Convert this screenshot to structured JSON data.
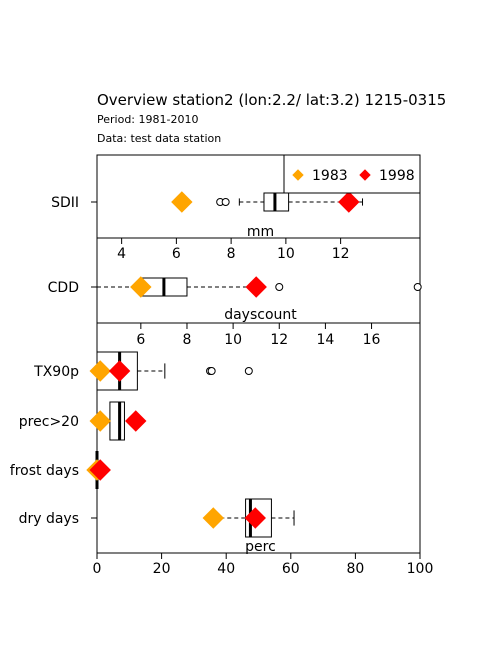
{
  "chart_data": {
    "type": "boxplot",
    "title": "Overview station2 (lon:2.2/ lat:3.2) 1215-0315",
    "subtitle_lines": [
      "Period: 1981-2010",
      "Data: test data station"
    ],
    "legend": {
      "placement": "top-right",
      "entries": [
        {
          "name": "1983",
          "color": "#FFA500"
        },
        {
          "name": "1998",
          "color": "#FF0000"
        }
      ]
    },
    "panels": [
      {
        "unit": "mm",
        "xlim": [
          3.1,
          14.9
        ],
        "ticks": [
          4,
          6,
          8,
          10,
          12
        ],
        "rows": [
          {
            "label": "SDII",
            "q1": 9.2,
            "median": 9.6,
            "q3": 10.1,
            "whisker_low": 8.3,
            "whisker_high": 12.8,
            "outliers": [
              7.6,
              7.8
            ],
            "year1983": 6.2,
            "year1998": 12.3
          }
        ]
      },
      {
        "unit": "dayscount",
        "xlim": [
          4.1,
          18.1
        ],
        "ticks": [
          6,
          8,
          10,
          12,
          14,
          16
        ],
        "rows": [
          {
            "label": "CDD",
            "q1": 6.0,
            "median": 7.0,
            "q3": 8.0,
            "whisker_low": 4.1,
            "whisker_high": 11.0,
            "outliers": [
              12.0,
              18.0
            ],
            "year1983": 6.0,
            "year1998": 11.0
          }
        ]
      },
      {
        "unit": "perc",
        "xlim": [
          0,
          100
        ],
        "ticks": [
          0,
          20,
          40,
          60,
          80,
          100
        ],
        "rows": [
          {
            "label": "TX90p",
            "q1": 0,
            "median": 7,
            "q3": 12.5,
            "whisker_low": 0,
            "whisker_high": 21,
            "outliers": [
              35,
              35.5,
              47
            ],
            "year1983": 1,
            "year1998": 7
          },
          {
            "label": "prec>20",
            "q1": 4,
            "median": 7,
            "q3": 8.5,
            "whisker_low": 4,
            "whisker_high": 8.5,
            "outliers": [],
            "year1983": 1,
            "year1998": 12
          },
          {
            "label": "frost days",
            "q1": 0,
            "median": 0,
            "q3": 0,
            "whisker_low": 0,
            "whisker_high": 0,
            "outliers": [],
            "year1983": 0,
            "year1998": 1
          },
          {
            "label": "dry days",
            "q1": 46,
            "median": 47.5,
            "q3": 54,
            "whisker_low": 36,
            "whisker_high": 61,
            "outliers": [],
            "year1983": 36,
            "year1998": 49
          }
        ]
      }
    ]
  }
}
